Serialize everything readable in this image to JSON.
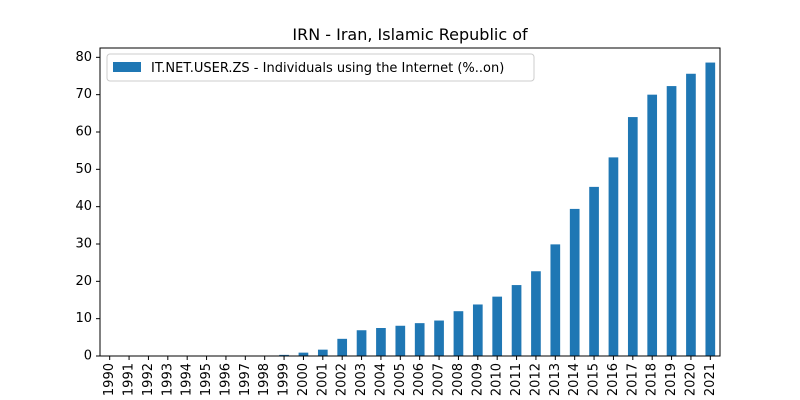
{
  "chart_data": {
    "type": "bar",
    "title": "IRN - Iran, Islamic Republic of",
    "xlabel": "",
    "ylabel": "",
    "categories": [
      "1990",
      "1991",
      "1992",
      "1993",
      "1994",
      "1995",
      "1996",
      "1997",
      "1998",
      "1999",
      "2000",
      "2001",
      "2002",
      "2003",
      "2004",
      "2005",
      "2006",
      "2007",
      "2008",
      "2009",
      "2010",
      "2011",
      "2012",
      "2013",
      "2014",
      "2015",
      "2016",
      "2017",
      "2018",
      "2019",
      "2020",
      "2021"
    ],
    "series": [
      {
        "name": "IT.NET.USER.ZS - Individuals using the Internet (%..on)",
        "color": "#1f77b4",
        "values": [
          0,
          0,
          0,
          0,
          0,
          0.01,
          0.02,
          0.05,
          0.1,
          0.3,
          0.9,
          1.7,
          4.6,
          6.9,
          7.5,
          8.1,
          8.8,
          9.5,
          12.0,
          13.8,
          15.9,
          19.0,
          22.7,
          29.9,
          39.4,
          45.3,
          53.2,
          64.0,
          70.0,
          72.3,
          75.6,
          78.6
        ]
      }
    ],
    "ylim": [
      0,
      82.5
    ],
    "yticks": [
      0,
      10,
      20,
      30,
      40,
      50,
      60,
      70,
      80
    ],
    "legend_position": "top-left",
    "grid": false
  }
}
